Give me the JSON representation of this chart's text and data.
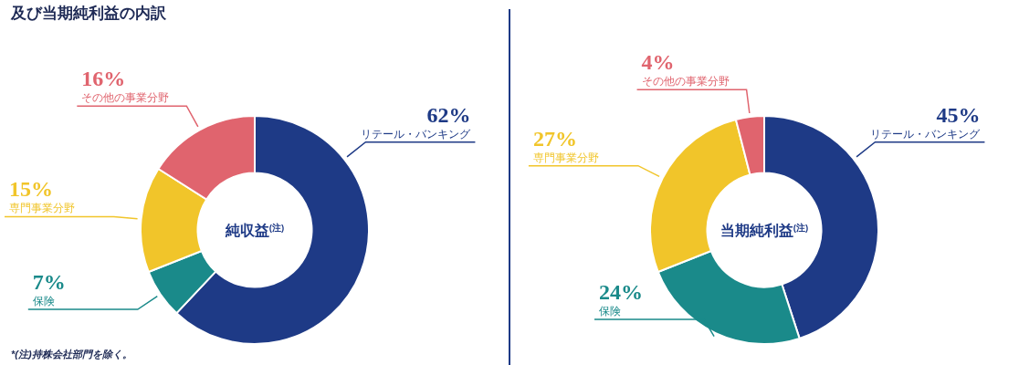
{
  "chart_data": [
    {
      "type": "donut",
      "title": "純収益$^{(注)}$",
      "categories": [
        "リテール・バンキング",
        "保険",
        "専門事業分野",
        "その他の事業分野"
      ],
      "values": [
        62,
        7,
        15,
        16
      ],
      "value_labels": [
        "62%",
        "7%",
        "15%",
        "16%"
      ],
      "colors": [
        "#1e3a86",
        "#1a8a8a",
        "#f1c52a",
        "#e0646e"
      ],
      "annotations": [
        "及び当期純利益の内訳",
        "*(注)持株会社部門を除く。"
      ]
    },
    {
      "type": "donut",
      "title": "当期純利益$^{(注)}$",
      "categories": [
        "リテール・バンキング",
        "保険",
        "専門事業分野",
        "その他の事業分野"
      ],
      "values": [
        45,
        24,
        27,
        4
      ],
      "value_labels": [
        "45%",
        "24%",
        "27%",
        "4%"
      ],
      "colors": [
        "#1e3a86",
        "#1a8a8a",
        "#f1c52a",
        "#e0646e"
      ]
    }
  ]
}
